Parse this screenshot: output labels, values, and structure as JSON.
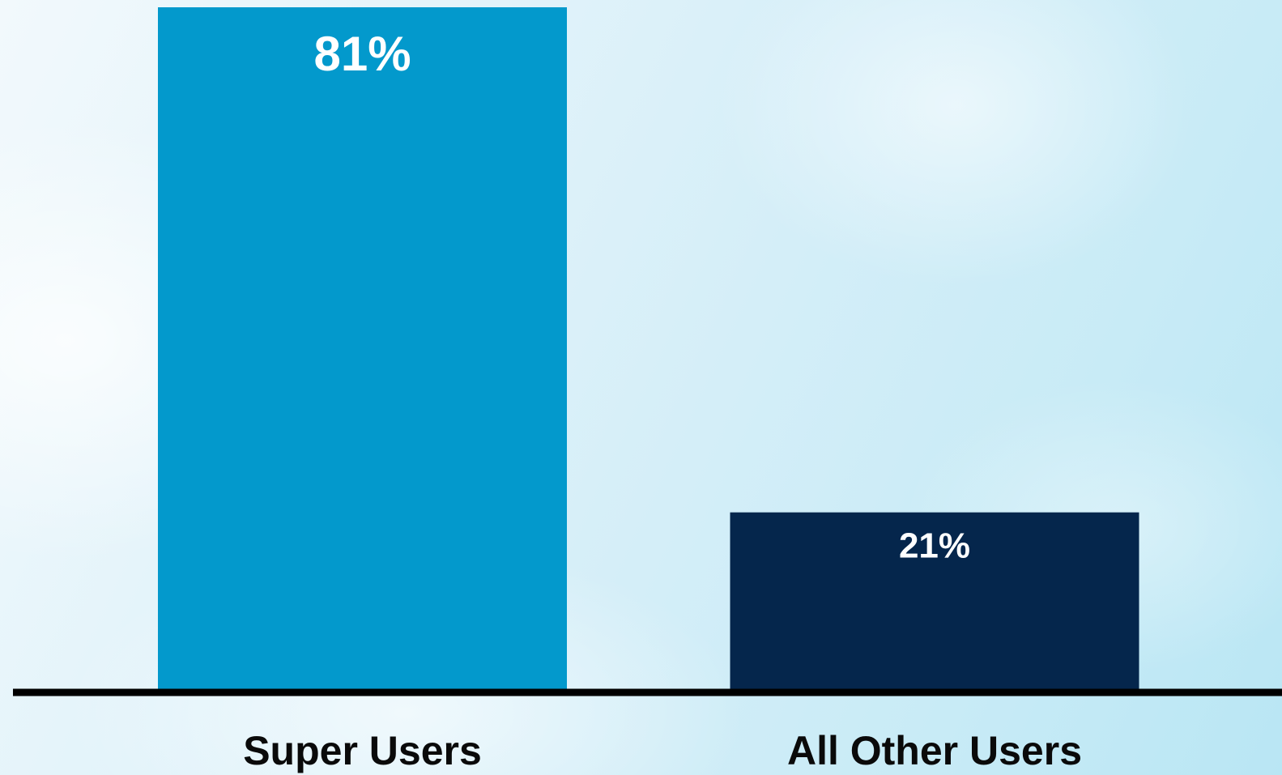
{
  "chart_data": {
    "type": "bar",
    "categories": [
      "Super Users",
      "All Other Users"
    ],
    "values": [
      81,
      21
    ],
    "value_labels": [
      "81%",
      "21%"
    ],
    "title": "",
    "xlabel": "",
    "ylabel": "",
    "ylim": [
      0,
      81
    ],
    "grid": false,
    "colors": [
      "#0399cc",
      "#05264c"
    ],
    "label_color": "#ffffff",
    "axis_color": "#000000",
    "category_label_color": "#0a0a0a"
  }
}
